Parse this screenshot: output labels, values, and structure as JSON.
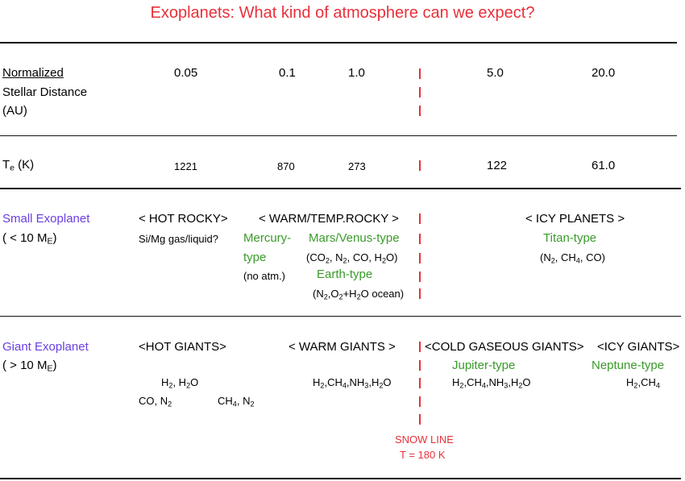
{
  "title": "Exoplanets: What kind of atmosphere can we expect?",
  "distance_row": {
    "label_line1": "Normalized",
    "label_line2": "Stellar Distance",
    "label_line3": "(AU)",
    "values": [
      "0.05",
      "0.1",
      "1.0",
      "5.0",
      "20.0"
    ]
  },
  "temperature_row": {
    "label_main": "T",
    "label_sub": "e",
    "label_unit": " (K)",
    "values": [
      "1221",
      "870",
      "273",
      "122",
      "61.0"
    ]
  },
  "small_exoplanet": {
    "name": "Small Exoplanet",
    "mass_prefix": "( < 10 M",
    "mass_sub": "E",
    "mass_suffix": ")",
    "hot_rocky": "< HOT ROCKY>",
    "hot_rocky_gas": "Si/Mg gas/liquid?",
    "warm_temp_rocky": "<  WARM/TEMP.ROCKY >",
    "mercury_type_1": "Mercury-",
    "mercury_type_2": "type",
    "mercury_note": "(no atm.)",
    "mars_venus_type": "Mars/Venus-type",
    "mars_venus_gas": "(CO2, N2, CO, H2O)",
    "earth_type": "Earth-type",
    "earth_gas": "(N2,O2+H2O ocean)",
    "icy_planets": "< ICY PLANETS >",
    "titan_type": "Titan-type",
    "titan_gas": "(N2, CH4, CO)"
  },
  "giant_exoplanet": {
    "name": "Giant Exoplanet",
    "mass_prefix": "( > 10 M",
    "mass_sub": "E",
    "mass_suffix": ")",
    "hot_giants": "<HOT GIANTS>",
    "hot_gas_1": "H2, H2O",
    "hot_gas_2": "CO, N2",
    "hot_gas_3": "CH4, N2",
    "warm_giants": "<  WARM GIANTS  >",
    "warm_gas": "H2,CH4,NH3,H2O",
    "cold_gaseous_giants": "<COLD GASEOUS GIANTS>",
    "jupiter_type": "Jupiter-type",
    "jupiter_gas": "H2,CH4,NH3,H2O",
    "icy_giants": "<ICY GIANTS>",
    "neptune_type": "Neptune-type",
    "neptune_gas": "H2,CH4"
  },
  "snow_line": {
    "label": "SNOW LINE",
    "temperature": "T = 180 K"
  }
}
